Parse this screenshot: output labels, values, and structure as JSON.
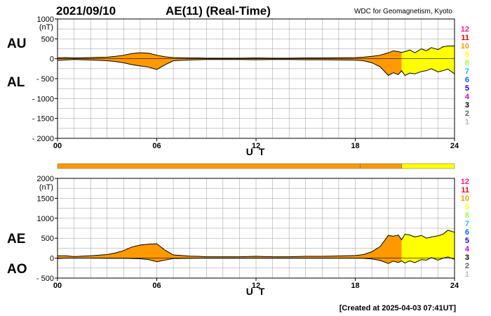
{
  "header": {
    "date": "2021/09/10",
    "title": "AE(11) (Real-Time)",
    "source": "WDC for Geomagnetism, Kyoto"
  },
  "footer": {
    "created": "[Created at 2025-04-03 07:41UT]"
  },
  "legend": {
    "numbers": [
      "12",
      "11",
      "10",
      "9",
      "8",
      "7",
      "6",
      "5",
      "4",
      "3",
      "2",
      "1"
    ],
    "colors": [
      "#ff1a8c",
      "#ff0000",
      "#ff9900",
      "#ffff00",
      "#99ff33",
      "#00cccc",
      "#0066ff",
      "#2a00cc",
      "#cc00cc",
      "#000000",
      "#666666",
      "#bbbbbb"
    ]
  },
  "station_bar": {
    "segments": [
      {
        "from": 0,
        "to": 18.3,
        "color": "#ff9900"
      },
      {
        "from": 18.3,
        "to": 20.8,
        "color": "#ff9900"
      },
      {
        "from": 20.8,
        "to": 24,
        "color": "#ffff00"
      }
    ]
  },
  "chart_data": [
    {
      "type": "area",
      "panel": "AU/AL",
      "series_labels": [
        "AU",
        "AL"
      ],
      "unit": "(nT)",
      "xlabel": "U T",
      "xlim": [
        0,
        24
      ],
      "xticks": [
        "00",
        "06",
        "12",
        "18",
        "24"
      ],
      "ylim": [
        -2000,
        1000
      ],
      "yticks": [
        "1000",
        "500",
        "0",
        "- 500",
        "- 1000",
        "- 1500",
        "- 2000"
      ],
      "grid": true,
      "fill_colors": [
        {
          "from": 0,
          "to": 20.8,
          "color": "#ff9900"
        },
        {
          "from": 20.8,
          "to": 24,
          "color": "#ffff00"
        }
      ],
      "x": [
        0,
        0.5,
        1,
        1.5,
        2,
        2.5,
        3,
        3.5,
        4,
        4.5,
        5,
        5.5,
        6,
        6.5,
        7,
        7.5,
        8,
        8.5,
        9,
        10,
        11,
        12,
        13,
        14,
        15,
        16,
        17,
        18,
        18.5,
        19,
        19.5,
        20,
        20.3,
        20.6,
        20.8,
        21,
        21.3,
        21.6,
        22,
        22.3,
        22.6,
        23,
        23.3,
        23.6,
        24
      ],
      "series": [
        {
          "name": "AU",
          "values": [
            20,
            30,
            20,
            25,
            30,
            35,
            40,
            60,
            90,
            130,
            150,
            140,
            90,
            50,
            30,
            25,
            20,
            20,
            15,
            15,
            15,
            20,
            15,
            15,
            20,
            20,
            25,
            30,
            40,
            60,
            90,
            150,
            200,
            180,
            160,
            180,
            220,
            150,
            250,
            200,
            280,
            230,
            300,
            320,
            320
          ]
        },
        {
          "name": "AL",
          "values": [
            -40,
            -30,
            -20,
            -25,
            -30,
            -40,
            -50,
            -70,
            -100,
            -150,
            -180,
            -210,
            -270,
            -150,
            -50,
            -40,
            -30,
            -25,
            -20,
            -20,
            -20,
            -25,
            -20,
            -20,
            -25,
            -25,
            -30,
            -35,
            -50,
            -100,
            -200,
            -420,
            -350,
            -400,
            -300,
            -420,
            -360,
            -380,
            -320,
            -300,
            -250,
            -330,
            -300,
            -260,
            -380
          ]
        }
      ]
    },
    {
      "type": "area",
      "panel": "AE/AO",
      "series_labels": [
        "AE",
        "AO"
      ],
      "unit": "(nT)",
      "xlabel": "U T",
      "xlim": [
        0,
        24
      ],
      "xticks": [
        "00",
        "06",
        "12",
        "18",
        "24"
      ],
      "ylim": [
        -500,
        2000
      ],
      "yticks": [
        "2000",
        "1500",
        "1000",
        "500",
        "0",
        "- 500"
      ],
      "grid": true,
      "fill_colors": [
        {
          "from": 0,
          "to": 20.8,
          "color": "#ff9900"
        },
        {
          "from": 20.8,
          "to": 24,
          "color": "#ffff00"
        }
      ],
      "x": [
        0,
        0.5,
        1,
        1.5,
        2,
        2.5,
        3,
        3.5,
        4,
        4.5,
        5,
        5.5,
        6,
        6.5,
        7,
        7.5,
        8,
        8.5,
        9,
        10,
        11,
        12,
        13,
        14,
        15,
        16,
        17,
        18,
        18.5,
        19,
        19.5,
        20,
        20.3,
        20.6,
        20.8,
        21,
        21.3,
        21.6,
        22,
        22.3,
        22.6,
        23,
        23.3,
        23.6,
        24
      ],
      "series": [
        {
          "name": "AE",
          "values": [
            60,
            60,
            40,
            50,
            60,
            75,
            90,
            130,
            190,
            280,
            330,
            350,
            360,
            200,
            80,
            65,
            50,
            45,
            35,
            35,
            35,
            45,
            35,
            35,
            45,
            45,
            55,
            65,
            90,
            160,
            290,
            570,
            550,
            580,
            460,
            600,
            580,
            530,
            570,
            500,
            530,
            560,
            600,
            700,
            650
          ]
        },
        {
          "name": "AO",
          "values": [
            -10,
            0,
            0,
            0,
            0,
            -3,
            -5,
            -5,
            -5,
            -10,
            -15,
            -35,
            -90,
            -50,
            -10,
            -8,
            -5,
            -3,
            -3,
            -3,
            -3,
            -3,
            -3,
            -3,
            -3,
            -3,
            -3,
            -3,
            -5,
            -20,
            -55,
            -135,
            -75,
            -110,
            -70,
            -120,
            -70,
            -115,
            -35,
            -50,
            15,
            -50,
            0,
            30,
            -30
          ]
        }
      ]
    }
  ]
}
